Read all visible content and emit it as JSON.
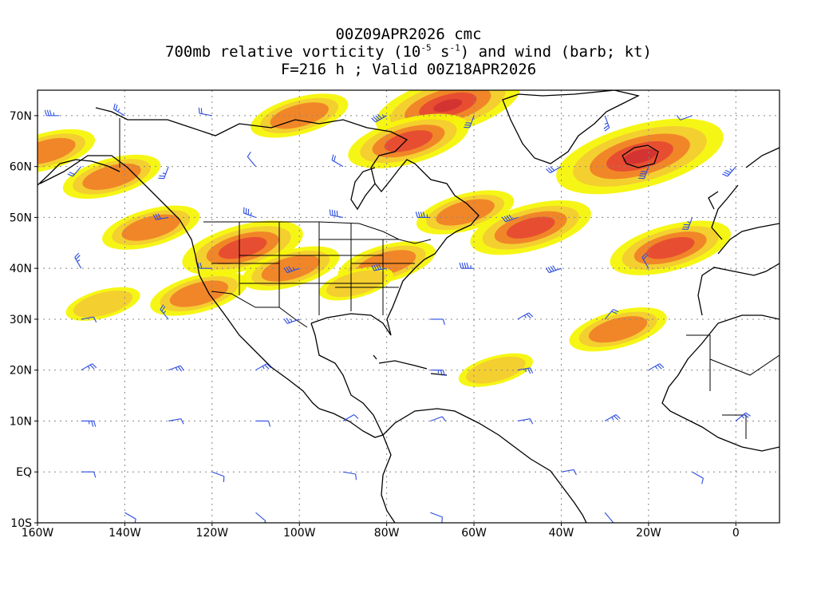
{
  "title": {
    "line1": "00Z09APR2026 cmc",
    "line2_prefix": "700mb relative vorticity (10",
    "line2_exp1": "-5",
    "line2_mid": " s",
    "line2_exp2": "-1",
    "line2_suffix": ") and wind (barb; kt)",
    "line3": "F=216 h ; Valid 00Z18APR2026"
  },
  "axes": {
    "lon_labels": [
      "160W",
      "140W",
      "120W",
      "100W",
      "80W",
      "60W",
      "40W",
      "20W",
      "0"
    ],
    "lon_values": [
      -160,
      -140,
      -120,
      -100,
      -80,
      -60,
      -40,
      -20,
      0
    ],
    "lat_labels": [
      "70N",
      "60N",
      "50N",
      "40N",
      "30N",
      "20N",
      "10N",
      "EQ",
      "10S"
    ],
    "lat_values": [
      70,
      60,
      50,
      40,
      30,
      20,
      10,
      0,
      -10
    ],
    "lon_range": [
      -160,
      10
    ],
    "lat_range": [
      -10,
      75
    ],
    "grid": "dotted"
  },
  "colors": {
    "shade_light": "#f5f50a",
    "shade_mid": "#f3cc32",
    "shade_orange": "#f08228",
    "shade_red": "#e64b32",
    "shade_dark": "#d23232",
    "barb": "#2a4be0",
    "coast": "#000000"
  },
  "chart_data": {
    "type": "map",
    "field": "700mb relative vorticity",
    "vorticity_regions": [
      {
        "lon": -66,
        "lat": 72,
        "level": 4
      },
      {
        "lon": -75,
        "lat": 65,
        "level": 3
      },
      {
        "lon": -22,
        "lat": 62,
        "level": 5
      },
      {
        "lon": -15,
        "lat": 44,
        "level": 3
      },
      {
        "lon": -47,
        "lat": 48,
        "level": 3
      },
      {
        "lon": -62,
        "lat": 51,
        "level": 2
      },
      {
        "lon": -113,
        "lat": 44,
        "level": 3
      },
      {
        "lon": -102,
        "lat": 40,
        "level": 2
      },
      {
        "lon": -80,
        "lat": 41,
        "level": 2
      },
      {
        "lon": -143,
        "lat": 58,
        "level": 2
      },
      {
        "lon": -134,
        "lat": 48,
        "level": 2
      },
      {
        "lon": -158,
        "lat": 63,
        "level": 2
      },
      {
        "lon": -145,
        "lat": 33,
        "level": 1
      },
      {
        "lon": -27,
        "lat": 28,
        "level": 2
      },
      {
        "lon": -55,
        "lat": 20,
        "level": 1
      },
      {
        "lon": -87,
        "lat": 37,
        "level": 1
      },
      {
        "lon": -100,
        "lat": 70,
        "level": 2
      },
      {
        "lon": -123,
        "lat": 35,
        "level": 2
      }
    ],
    "wind_barbs": [
      {
        "lon": -155,
        "lat": 70,
        "speed": 25,
        "dir": 270
      },
      {
        "lon": -140,
        "lat": 70,
        "speed": 15,
        "dir": 300
      },
      {
        "lon": -120,
        "lat": 70,
        "speed": 20,
        "dir": 280
      },
      {
        "lon": -80,
        "lat": 70,
        "speed": 35,
        "dir": 240
      },
      {
        "lon": -60,
        "lat": 70,
        "speed": 30,
        "dir": 200
      },
      {
        "lon": -30,
        "lat": 70,
        "speed": 15,
        "dir": 160
      },
      {
        "lon": -10,
        "lat": 70,
        "speed": 10,
        "dir": 250
      },
      {
        "lon": -150,
        "lat": 60,
        "speed": 20,
        "dir": 220
      },
      {
        "lon": -130,
        "lat": 60,
        "speed": 15,
        "dir": 200
      },
      {
        "lon": -110,
        "lat": 60,
        "speed": 10,
        "dir": 320
      },
      {
        "lon": -90,
        "lat": 60,
        "speed": 20,
        "dir": 300
      },
      {
        "lon": -40,
        "lat": 60,
        "speed": 30,
        "dir": 240
      },
      {
        "lon": -20,
        "lat": 60,
        "speed": 40,
        "dir": 200
      },
      {
        "lon": 0,
        "lat": 60,
        "speed": 25,
        "dir": 220
      },
      {
        "lon": -130,
        "lat": 50,
        "speed": 30,
        "dir": 260
      },
      {
        "lon": -110,
        "lat": 50,
        "speed": 25,
        "dir": 290
      },
      {
        "lon": -90,
        "lat": 50,
        "speed": 40,
        "dir": 280
      },
      {
        "lon": -70,
        "lat": 50,
        "speed": 35,
        "dir": 270
      },
      {
        "lon": -50,
        "lat": 50,
        "speed": 40,
        "dir": 250
      },
      {
        "lon": -10,
        "lat": 50,
        "speed": 25,
        "dir": 200
      },
      {
        "lon": -150,
        "lat": 40,
        "speed": 15,
        "dir": 330
      },
      {
        "lon": -120,
        "lat": 40,
        "speed": 20,
        "dir": 270
      },
      {
        "lon": -100,
        "lat": 40,
        "speed": 25,
        "dir": 250
      },
      {
        "lon": -80,
        "lat": 40,
        "speed": 40,
        "dir": 260
      },
      {
        "lon": -60,
        "lat": 40,
        "speed": 35,
        "dir": 270
      },
      {
        "lon": -40,
        "lat": 40,
        "speed": 40,
        "dir": 250
      },
      {
        "lon": -20,
        "lat": 40,
        "speed": 20,
        "dir": 330
      },
      {
        "lon": -150,
        "lat": 30,
        "speed": 10,
        "dir": 80
      },
      {
        "lon": -130,
        "lat": 30,
        "speed": 15,
        "dir": 320
      },
      {
        "lon": -100,
        "lat": 30,
        "speed": 15,
        "dir": 250
      },
      {
        "lon": -70,
        "lat": 30,
        "speed": 10,
        "dir": 90
      },
      {
        "lon": -50,
        "lat": 30,
        "speed": 15,
        "dir": 60
      },
      {
        "lon": -30,
        "lat": 30,
        "speed": 20,
        "dir": 40
      },
      {
        "lon": -150,
        "lat": 20,
        "speed": 15,
        "dir": 60
      },
      {
        "lon": -130,
        "lat": 20,
        "speed": 15,
        "dir": 70
      },
      {
        "lon": -110,
        "lat": 20,
        "speed": 15,
        "dir": 60
      },
      {
        "lon": -70,
        "lat": 20,
        "speed": 15,
        "dir": 90
      },
      {
        "lon": -50,
        "lat": 20,
        "speed": 15,
        "dir": 80
      },
      {
        "lon": -20,
        "lat": 20,
        "speed": 15,
        "dir": 60
      },
      {
        "lon": -150,
        "lat": 10,
        "speed": 15,
        "dir": 90
      },
      {
        "lon": -130,
        "lat": 10,
        "speed": 10,
        "dir": 80
      },
      {
        "lon": -110,
        "lat": 10,
        "speed": 10,
        "dir": 90
      },
      {
        "lon": -90,
        "lat": 10,
        "speed": 10,
        "dir": 60
      },
      {
        "lon": -70,
        "lat": 10,
        "speed": 10,
        "dir": 70
      },
      {
        "lon": -50,
        "lat": 10,
        "speed": 10,
        "dir": 80
      },
      {
        "lon": -30,
        "lat": 10,
        "speed": 15,
        "dir": 60
      },
      {
        "lon": 0,
        "lat": 10,
        "speed": 15,
        "dir": 50
      },
      {
        "lon": -150,
        "lat": 0,
        "speed": 10,
        "dir": 90
      },
      {
        "lon": -120,
        "lat": 0,
        "speed": 10,
        "dir": 110
      },
      {
        "lon": -90,
        "lat": 0,
        "speed": 10,
        "dir": 100
      },
      {
        "lon": -40,
        "lat": 0,
        "speed": 10,
        "dir": 80
      },
      {
        "lon": -10,
        "lat": 0,
        "speed": 10,
        "dir": 120
      },
      {
        "lon": -140,
        "lat": -8,
        "speed": 10,
        "dir": 120
      },
      {
        "lon": -110,
        "lat": -8,
        "speed": 10,
        "dir": 130
      },
      {
        "lon": -70,
        "lat": -8,
        "speed": 10,
        "dir": 110
      },
      {
        "lon": -30,
        "lat": -8,
        "speed": 10,
        "dir": 140
      }
    ]
  }
}
